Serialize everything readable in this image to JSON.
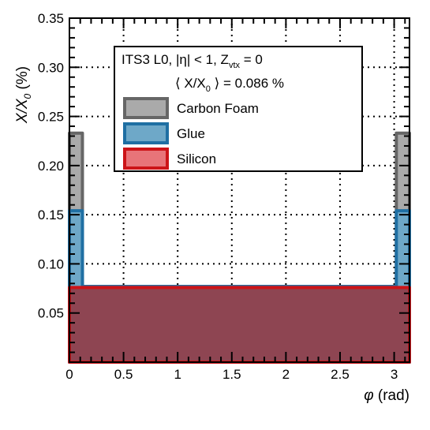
{
  "chart_data": {
    "type": "area",
    "title": "ITS3 L0, |η| < 1, Z",
    "title_sub": "vtx",
    "title_suffix": " = 0",
    "subtitle_pre": "⟨ X/X",
    "subtitle_sub": "0",
    "subtitle_post": " ⟩ = 0.086 %",
    "xlabel_symbol": "φ",
    "xlabel_unit": " (rad)",
    "ylabel_main": "X/X",
    "ylabel_sub": "0",
    "ylabel_unit": " (%)",
    "xlim": [
      0,
      3.1416
    ],
    "ylim": [
      0,
      0.35
    ],
    "xticks": [
      0,
      0.5,
      1,
      1.5,
      2,
      2.5,
      3
    ],
    "xtick_labels": [
      "0",
      "0.5",
      "1",
      "1.5",
      "2",
      "2.5",
      "3"
    ],
    "yticks": [
      0.05,
      0.1,
      0.15,
      0.2,
      0.25,
      0.3,
      0.35
    ],
    "ytick_labels": [
      "0.05",
      "0.10",
      "0.15",
      "0.20",
      "0.25",
      "0.30",
      "0.35"
    ],
    "grid": true,
    "legend_position": "top-center",
    "series": [
      {
        "name": "Carbon Foam",
        "fill": "#aaaaaa",
        "stroke": "#666666",
        "values": [
          {
            "x0": 0.0,
            "x1": 0.12,
            "y": 0.233
          },
          {
            "x0": 0.12,
            "x1": 3.02,
            "y": 0.077
          },
          {
            "x0": 3.02,
            "x1": 3.1416,
            "y": 0.233
          }
        ]
      },
      {
        "name": "Glue",
        "fill": "#6ea8c8",
        "stroke": "#1f6fa3",
        "values": [
          {
            "x0": 0.0,
            "x1": 0.12,
            "y": 0.154
          },
          {
            "x0": 0.12,
            "x1": 3.02,
            "y": 0.077
          },
          {
            "x0": 3.02,
            "x1": 3.1416,
            "y": 0.154
          }
        ]
      },
      {
        "name": "Silicon",
        "fill": "#8e4552",
        "legend_fill": "#e87479",
        "stroke": "#cc1418",
        "values": [
          {
            "x0": 0.0,
            "x1": 3.1416,
            "y": 0.076
          }
        ]
      }
    ]
  }
}
